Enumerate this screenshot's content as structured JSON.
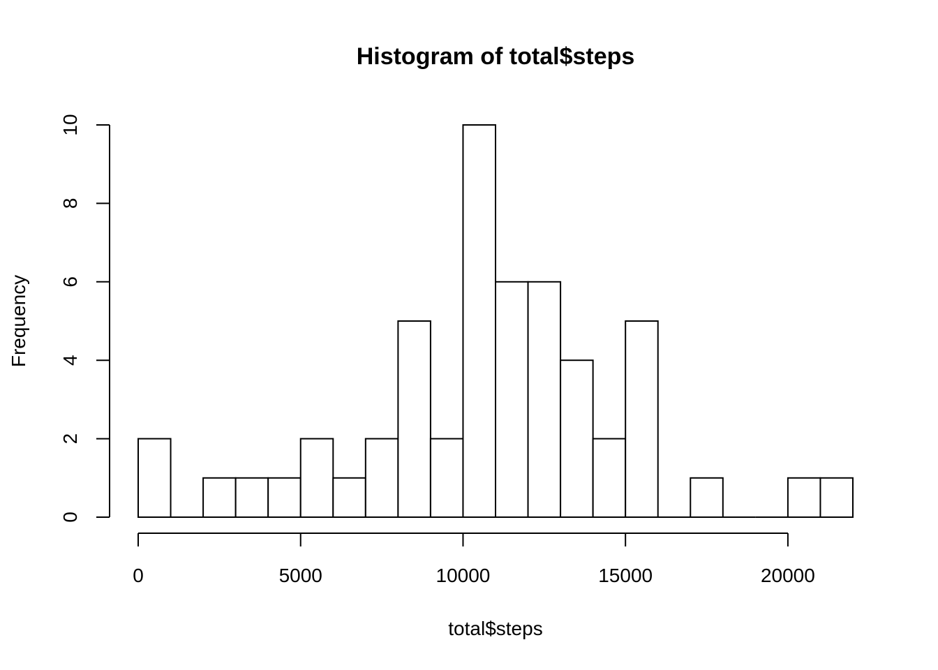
{
  "chart_data": {
    "type": "bar",
    "title": "Histogram of total$steps",
    "xlabel": "total$steps",
    "ylabel": "Frequency",
    "bin_width": 1000,
    "bins": [
      {
        "start": 0,
        "end": 1000,
        "count": 2
      },
      {
        "start": 1000,
        "end": 2000,
        "count": 0
      },
      {
        "start": 2000,
        "end": 3000,
        "count": 1
      },
      {
        "start": 3000,
        "end": 4000,
        "count": 1
      },
      {
        "start": 4000,
        "end": 5000,
        "count": 1
      },
      {
        "start": 5000,
        "end": 6000,
        "count": 2
      },
      {
        "start": 6000,
        "end": 7000,
        "count": 1
      },
      {
        "start": 7000,
        "end": 8000,
        "count": 2
      },
      {
        "start": 8000,
        "end": 9000,
        "count": 5
      },
      {
        "start": 9000,
        "end": 10000,
        "count": 2
      },
      {
        "start": 10000,
        "end": 11000,
        "count": 10
      },
      {
        "start": 11000,
        "end": 12000,
        "count": 6
      },
      {
        "start": 12000,
        "end": 13000,
        "count": 6
      },
      {
        "start": 13000,
        "end": 14000,
        "count": 4
      },
      {
        "start": 14000,
        "end": 15000,
        "count": 2
      },
      {
        "start": 15000,
        "end": 16000,
        "count": 5
      },
      {
        "start": 16000,
        "end": 17000,
        "count": 0
      },
      {
        "start": 17000,
        "end": 18000,
        "count": 1
      },
      {
        "start": 18000,
        "end": 19000,
        "count": 0
      },
      {
        "start": 19000,
        "end": 20000,
        "count": 0
      },
      {
        "start": 20000,
        "end": 21000,
        "count": 1
      },
      {
        "start": 21000,
        "end": 22000,
        "count": 1
      }
    ],
    "xlim": [
      0,
      22000
    ],
    "ylim": [
      0,
      10
    ],
    "x_ticks": [
      0,
      5000,
      10000,
      15000,
      20000
    ],
    "y_ticks": [
      0,
      2,
      4,
      6,
      8,
      10
    ],
    "grid": false,
    "legend": "none"
  }
}
